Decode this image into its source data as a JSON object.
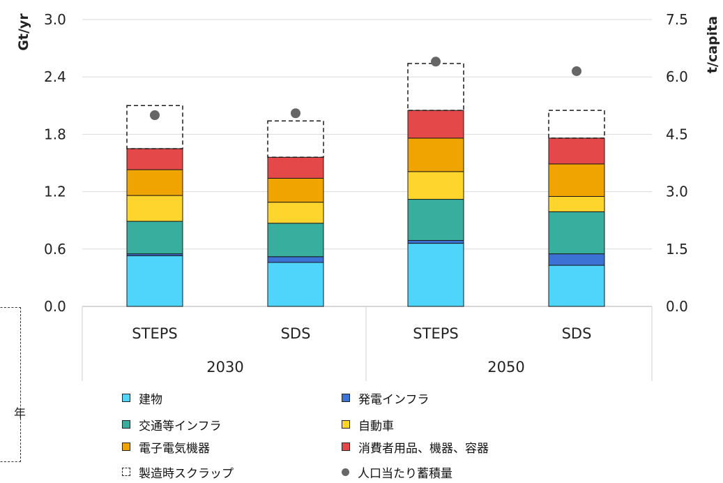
{
  "chart_data": {
    "type": "bar",
    "stacked": true,
    "y_left_label": "Gt/yr",
    "y_right_label": "t/capita",
    "ylim_left": [
      0,
      3.0
    ],
    "ylim_right": [
      0,
      7.5
    ],
    "left_ticks": [
      "0.0",
      "0.6",
      "1.2",
      "1.8",
      "2.4",
      "3.0"
    ],
    "right_ticks": [
      "0.0",
      "1.5",
      "3.0",
      "4.5",
      "6.0",
      "7.5"
    ],
    "groups": [
      {
        "label": "2030",
        "categories": [
          "STEPS",
          "SDS"
        ]
      },
      {
        "label": "2050",
        "categories": [
          "STEPS",
          "SDS"
        ]
      }
    ],
    "categories": [
      "STEPS",
      "SDS",
      "STEPS",
      "SDS"
    ],
    "series": [
      {
        "name": "建物",
        "color": "#4fd4fb",
        "values": [
          0.53,
          0.46,
          0.66,
          0.43
        ]
      },
      {
        "name": "発電インフラ",
        "color": "#3b72d3",
        "values": [
          0.02,
          0.06,
          0.03,
          0.12
        ]
      },
      {
        "name": "交通等インフラ",
        "color": "#38ae9f",
        "values": [
          0.34,
          0.35,
          0.43,
          0.44
        ]
      },
      {
        "name": "自動車",
        "color": "#fed52c",
        "values": [
          0.27,
          0.22,
          0.29,
          0.16
        ]
      },
      {
        "name": "電子電気機器",
        "color": "#f0a402",
        "values": [
          0.27,
          0.25,
          0.35,
          0.34
        ]
      },
      {
        "name": "消費者用品、機器、容器",
        "color": "#e54848",
        "values": [
          0.22,
          0.22,
          0.29,
          0.27
        ]
      },
      {
        "name": "製造時スクラップ",
        "color": "none",
        "dashed": true,
        "values": [
          0.45,
          0.38,
          0.49,
          0.29
        ]
      }
    ],
    "per_capita_dot": {
      "name": "人口当たり蓄積量",
      "color": "#666666",
      "axis": "right",
      "values": [
        5.0,
        5.05,
        6.4,
        6.15
      ]
    }
  },
  "legend": [
    {
      "label": "建物",
      "kind": "box",
      "color": "#4fd4fb"
    },
    {
      "label": "発電インフラ",
      "kind": "box",
      "color": "#3b72d3"
    },
    {
      "label": "交通等インフラ",
      "kind": "box",
      "color": "#38ae9f"
    },
    {
      "label": "自動車",
      "kind": "box",
      "color": "#fed52c"
    },
    {
      "label": "電子電気機器",
      "kind": "box",
      "color": "#f0a402"
    },
    {
      "label": "消費者用品、機器、容器",
      "kind": "box",
      "color": "#e54848"
    },
    {
      "label": "製造時スクラップ",
      "kind": "dashed",
      "color": "none"
    },
    {
      "label": "人口当たり蓄積量",
      "kind": "dot",
      "color": "#666666"
    }
  ],
  "side_text": "年"
}
